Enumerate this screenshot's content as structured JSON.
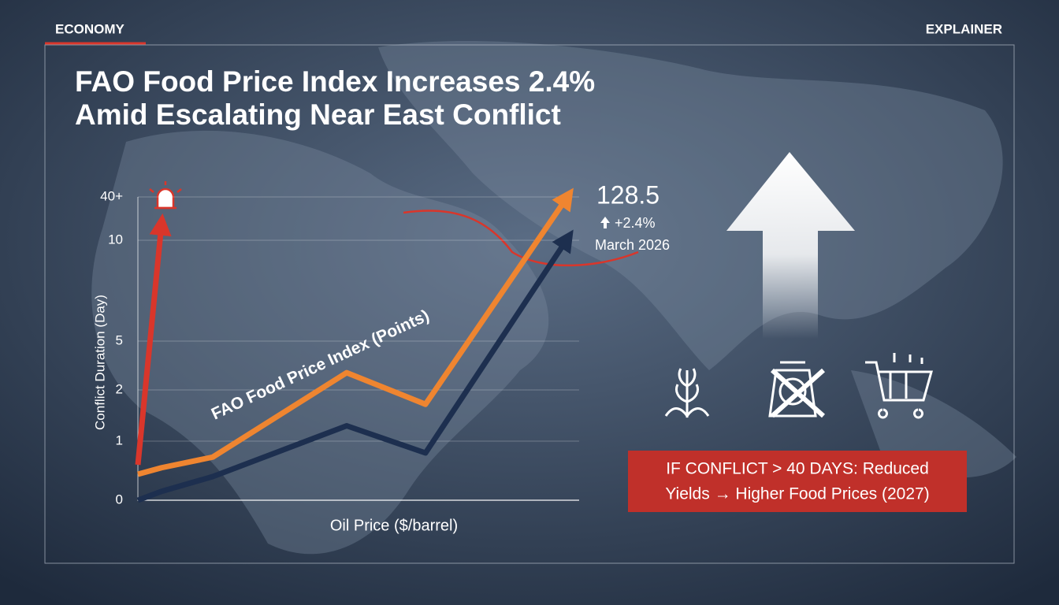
{
  "header": {
    "section": "ECONOMY",
    "tag": "EXPLAINER"
  },
  "chart_data": {
    "type": "line",
    "title": [
      "FAO Food Price Index Increases 2.4%",
      "Amid Escalating Near East Conflict"
    ],
    "y_label": "Conflict Duration (Day)",
    "x_label": "Oil Price ($/barrel)",
    "categories": [
      null,
      null,
      null,
      null,
      null,
      null
    ],
    "ylim": [
      0,
      40
    ],
    "yticks": [
      0,
      1,
      2,
      5,
      10,
      {
        "value": 40,
        "label": "40+"
      }
    ],
    "grid": true,
    "series": [
      {
        "color": "#d9362b",
        "values": [
          0.6,
          21,
          null,
          null,
          null,
          null
        ]
      },
      {
        "name": "FAO Food Price Index (Points)",
        "color": "#ef8530",
        "values": [
          0.44,
          0.55,
          0.73,
          3.06,
          1.72,
          40
        ]
      },
      {
        "color": "#1d2f4f",
        "values": [
          0,
          0.15,
          0.4,
          1.3,
          0.8,
          11
        ]
      }
    ],
    "callout": {
      "value": 128.5,
      "change": "+2.4%",
      "date": "March 2026"
    },
    "warning": [
      "IF CONFLICT > 40 DAYS: Reduced",
      "Yields → Higher Food Prices (2027)"
    ]
  }
}
